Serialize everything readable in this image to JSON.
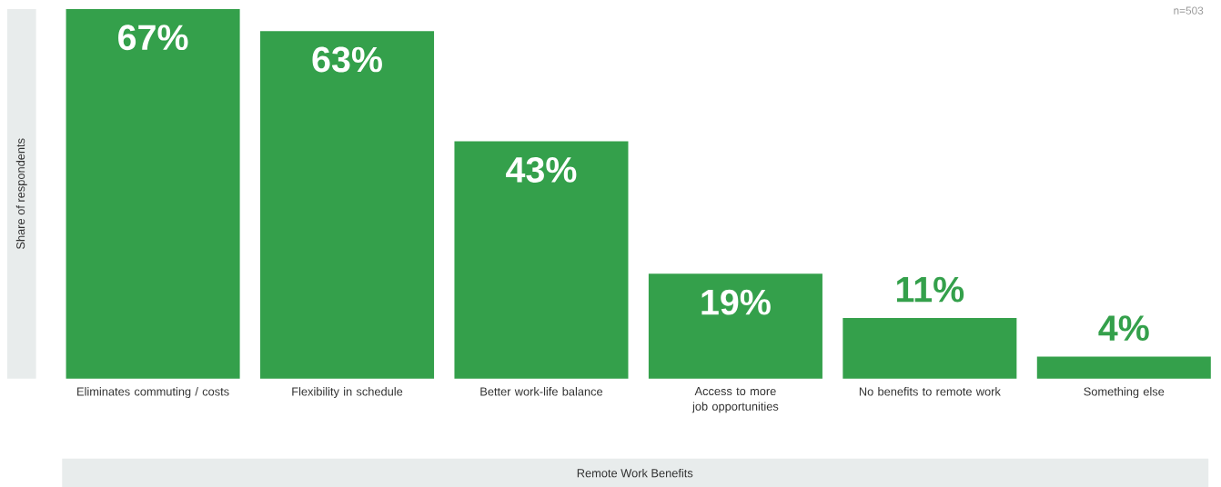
{
  "chart_data": {
    "type": "bar",
    "xlabel": "Remote Work Benefits",
    "ylabel": "Share of respondents",
    "annotations": [
      "n=503"
    ],
    "categories": [
      "Eliminates commuting / costs",
      "Flexibility in schedule",
      "Better work-life balance",
      "Access to more job opportunities",
      "No benefits to remote work",
      "Something else"
    ],
    "values": [
      67,
      63,
      43,
      19,
      11,
      4
    ],
    "value_labels": [
      "67%",
      "63%",
      "43%",
      "19%",
      "11%",
      "4%"
    ],
    "color": "#34a04b"
  }
}
